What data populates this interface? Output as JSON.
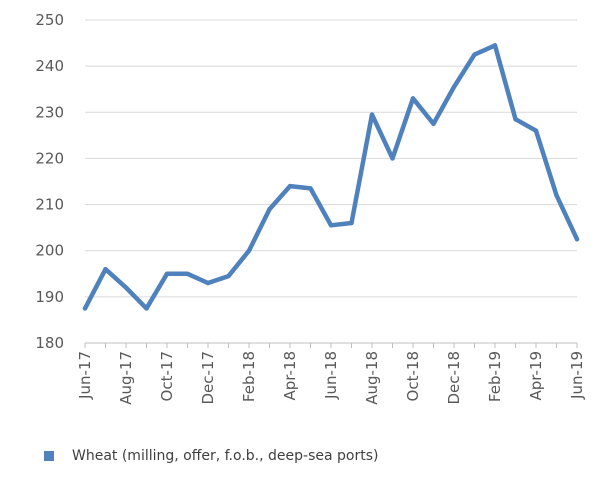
{
  "chart_data": {
    "type": "line",
    "x": [
      "Jun-17",
      "Jul-17",
      "Aug-17",
      "Sep-17",
      "Oct-17",
      "Nov-17",
      "Dec-17",
      "Jan-18",
      "Feb-18",
      "Mar-18",
      "Apr-18",
      "May-18",
      "Jun-18",
      "Jul-18",
      "Aug-18",
      "Sep-18",
      "Oct-18",
      "Nov-18",
      "Dec-18",
      "Jan-19",
      "Feb-19",
      "Mar-19",
      "Apr-19",
      "May-19",
      "Jun-19"
    ],
    "xtick_labels": [
      "Jun-17",
      "Aug-17",
      "Oct-17",
      "Dec-17",
      "Feb-18",
      "Apr-18",
      "Jun-18",
      "Aug-18",
      "Oct-18",
      "Dec-18",
      "Feb-19",
      "Apr-19",
      "Jun-19"
    ],
    "series": [
      {
        "name": "Wheat (milling, offer, f.o.b., deep-sea ports)",
        "color": "#4f81bd",
        "values": [
          187.5,
          196,
          192,
          187.5,
          195,
          195,
          193,
          194.5,
          200,
          209,
          214,
          213.5,
          205.5,
          206,
          229.5,
          220,
          233,
          227.5,
          235.5,
          242.5,
          244.5,
          228.5,
          226,
          212,
          202.5
        ]
      }
    ],
    "ylim": [
      180,
      250
    ],
    "yticks": [
      180,
      190,
      200,
      210,
      220,
      230,
      240,
      250
    ],
    "title": "",
    "xlabel": "",
    "ylabel": "",
    "grid": "horizontal",
    "legend_position": "bottom-left"
  }
}
